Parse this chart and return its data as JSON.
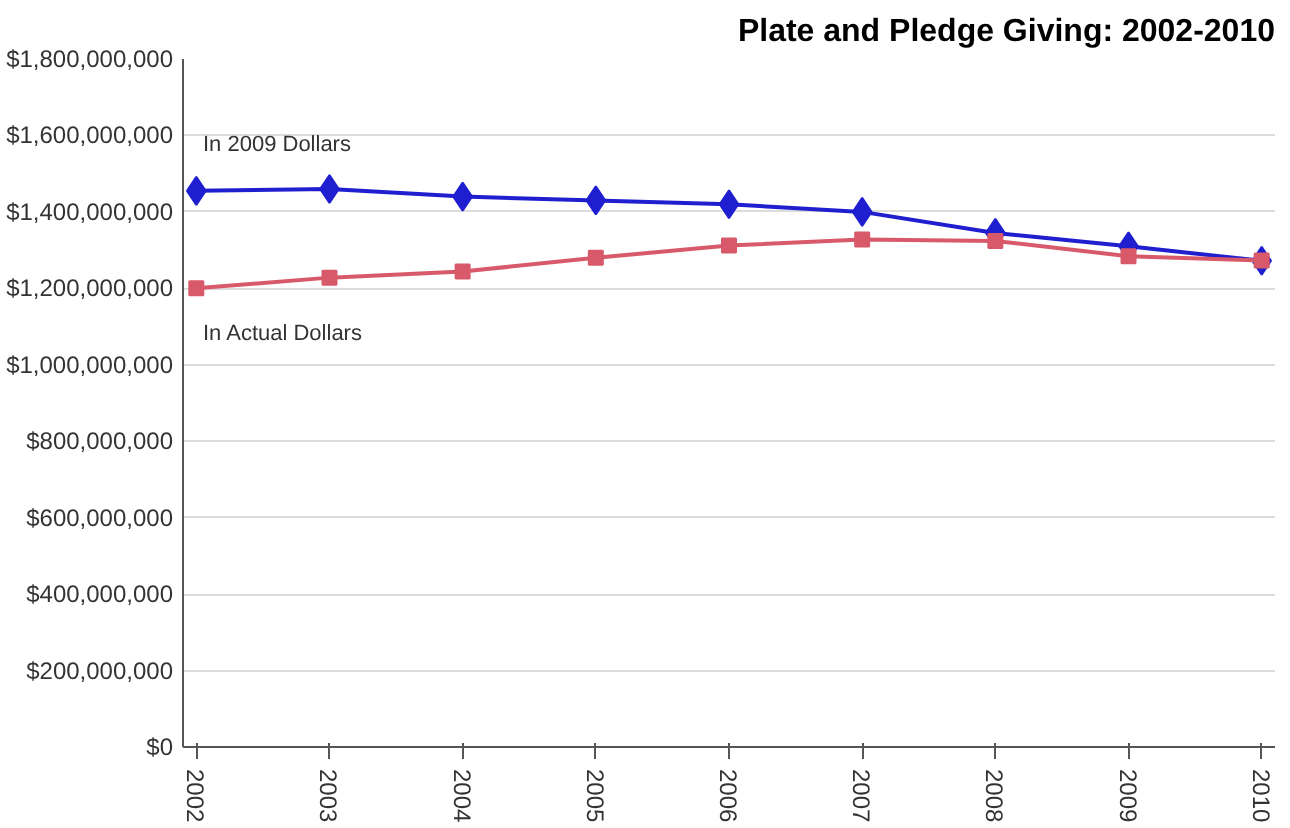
{
  "chart_data": {
    "type": "line",
    "title": "Plate and Pledge Giving: 2002-2010",
    "categories": [
      "2002",
      "2003",
      "2004",
      "2005",
      "2006",
      "2007",
      "2008",
      "2009",
      "2010"
    ],
    "series": [
      {
        "name": "In 2009 Dollars",
        "color": "#1f1fd0",
        "marker": "diamond",
        "values": [
          1455000000,
          1460000000,
          1440000000,
          1430000000,
          1420000000,
          1400000000,
          1345000000,
          1310000000,
          1272000000
        ]
      },
      {
        "name": "In Actual Dollars",
        "color": "#d85a6a",
        "marker": "square",
        "values": [
          1200000000,
          1228000000,
          1244000000,
          1280000000,
          1312000000,
          1328000000,
          1324000000,
          1284000000,
          1273000000
        ]
      }
    ],
    "ylim": [
      0,
      1800000000
    ],
    "yticks": [
      {
        "value": 0,
        "label": "$0"
      },
      {
        "value": 200000000,
        "label": "$200,000,000"
      },
      {
        "value": 400000000,
        "label": "$400,000,000"
      },
      {
        "value": 600000000,
        "label": "$600,000,000"
      },
      {
        "value": 800000000,
        "label": "$800,000,000"
      },
      {
        "value": 1000000000,
        "label": "$1,000,000,000"
      },
      {
        "value": 1200000000,
        "label": "$1,200,000,000"
      },
      {
        "value": 1400000000,
        "label": "$1,400,000,000"
      },
      {
        "value": 1600000000,
        "label": "$1,600,000,000"
      },
      {
        "value": 1800000000,
        "label": "$1,800,000,000"
      }
    ],
    "grid": "y",
    "legend": false
  }
}
